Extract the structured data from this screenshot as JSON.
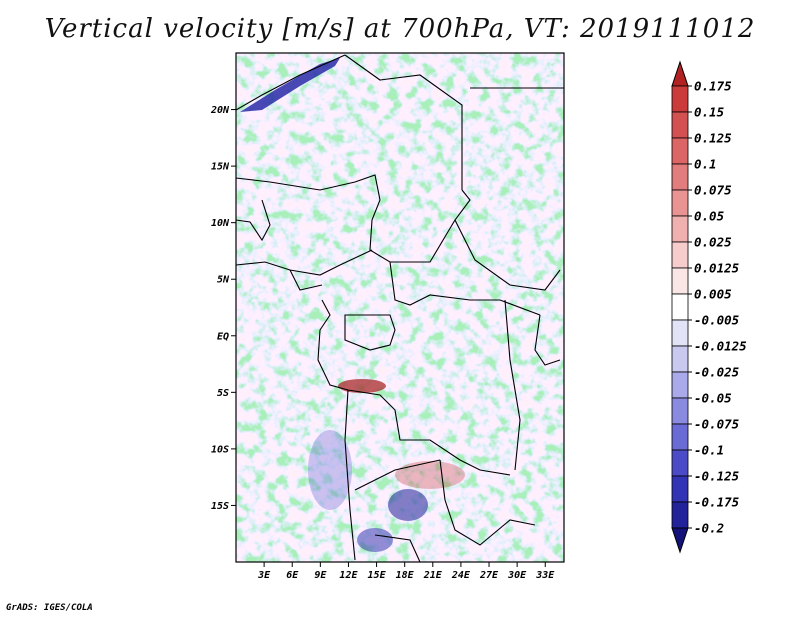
{
  "title": "Vertical velocity [m/s] at 700hPa, VT: 2019111012",
  "credit": "GrADS: IGES/COLA",
  "map": {
    "lon_range": [
      0,
      35
    ],
    "lat_range": [
      -20,
      25
    ],
    "lat_ticks": [
      {
        "value": 20,
        "label": "20N"
      },
      {
        "value": 15,
        "label": "15N"
      },
      {
        "value": 10,
        "label": "10N"
      },
      {
        "value": 5,
        "label": "5N"
      },
      {
        "value": 0,
        "label": "EQ"
      },
      {
        "value": -5,
        "label": "5S"
      },
      {
        "value": -10,
        "label": "10S"
      },
      {
        "value": -15,
        "label": "15S"
      }
    ],
    "lon_ticks": [
      {
        "value": 3,
        "label": "3E"
      },
      {
        "value": 6,
        "label": "6E"
      },
      {
        "value": 9,
        "label": "9E"
      },
      {
        "value": 12,
        "label": "12E"
      },
      {
        "value": 15,
        "label": "15E"
      },
      {
        "value": 18,
        "label": "18E"
      },
      {
        "value": 21,
        "label": "21E"
      },
      {
        "value": 24,
        "label": "24E"
      },
      {
        "value": 27,
        "label": "27E"
      },
      {
        "value": 30,
        "label": "30E"
      },
      {
        "value": 33,
        "label": "33E"
      }
    ]
  },
  "colorbar": {
    "labels": [
      "0.175",
      "0.15",
      "0.125",
      "0.1",
      "0.075",
      "0.05",
      "0.025",
      "0.0125",
      "0.005",
      "-0.005",
      "-0.0125",
      "-0.025",
      "-0.05",
      "-0.075",
      "-0.1",
      "-0.125",
      "-0.175",
      "-0.2"
    ],
    "colors": [
      "#b22222",
      "#cc3b3b",
      "#d45151",
      "#dc6565",
      "#e27d7d",
      "#e99393",
      "#f0b0b0",
      "#f6cccc",
      "#fbe6e6",
      "#ffffff",
      "#e3e3f7",
      "#c9c9f0",
      "#aaaaea",
      "#8a8ae0",
      "#6b6bd6",
      "#4b4bc8",
      "#3333b5",
      "#22229a",
      "#12127a"
    ]
  },
  "legend_colors": {
    "positive": "#cc3333",
    "negative": "#3333cc",
    "border": "#000000"
  }
}
